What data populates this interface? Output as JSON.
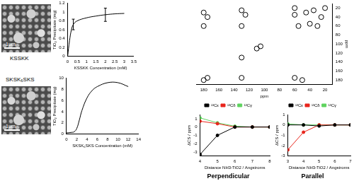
{
  "images": [
    {
      "label": "KSSKK",
      "scale_bar": "1μm"
    },
    {
      "label": "SKSK₆SKS",
      "scale_bar": "1μm"
    }
  ],
  "chart_data": [
    {
      "type": "line",
      "x_label": "KSSKK Concentration (mM)",
      "y_label": "TiO₂ Precipitate (mg)",
      "x": [
        0,
        0.1,
        0.2,
        0.3,
        0.5,
        1,
        1.5,
        2,
        2.5,
        3
      ],
      "values": [
        0,
        0.35,
        0.6,
        0.72,
        0.8,
        0.87,
        0.91,
        0.94,
        0.96,
        0.97
      ],
      "errors": [
        null,
        null,
        null,
        0.12,
        null,
        null,
        null,
        0.15,
        null,
        null
      ],
      "color": "#000000",
      "marker": "none",
      "line_style": "solid",
      "xlim": [
        0,
        3.5
      ],
      "xticks": [
        0,
        0.5,
        1,
        1.5,
        2,
        2.5,
        3,
        3.5
      ],
      "ylim": [
        0,
        1.2
      ],
      "yticks": [
        0,
        0.2,
        0.4,
        0.6,
        0.8,
        1,
        1.2
      ],
      "grid": false
    },
    {
      "type": "line",
      "x_label": "SKSK₆SKS Concentration (mM)",
      "y_label": "TiO₂ Precipitate (mg)",
      "x": [
        0,
        1,
        1.5,
        2,
        2.5,
        3,
        4,
        5,
        6,
        8,
        10,
        12
      ],
      "values": [
        0.2,
        0.3,
        0.4,
        1,
        2.5,
        4.2,
        6.5,
        7.8,
        8.5,
        9.2,
        9.2,
        8.5
      ],
      "color": "#000000",
      "marker": "none",
      "line_style": "solid",
      "xlim": [
        0,
        14
      ],
      "xticks": [
        0,
        2,
        4,
        6,
        8,
        10,
        12,
        14
      ],
      "ylim": [
        0,
        10
      ],
      "yticks": [
        0,
        2,
        4,
        6,
        8,
        10
      ],
      "grid": false
    },
    {
      "type": "scatter",
      "x_label": "ppm",
      "y_label": "ppm",
      "x": [
        180,
        175,
        130,
        125,
        60,
        45,
        35,
        25,
        20,
        55,
        40,
        30,
        180,
        130,
        60,
        110,
        105,
        130,
        180,
        175,
        130,
        60,
        50
      ],
      "values": [
        30,
        40,
        25,
        35,
        20,
        30,
        25,
        40,
        20,
        60,
        55,
        60,
        60,
        60,
        35,
        110,
        105,
        130,
        180,
        175,
        175,
        175,
        180
      ],
      "color": "#000000",
      "marker": "circle",
      "xlim": [
        190,
        10
      ],
      "xticks": [
        180,
        160,
        140,
        120,
        100,
        80,
        60,
        40,
        20
      ],
      "ylim": [
        190,
        10
      ],
      "yticks": [
        20,
        40,
        60,
        80,
        100,
        120,
        140,
        160,
        180
      ],
      "grid": false
    },
    {
      "type": "line",
      "title": "Perpendicular",
      "x_label": "Distance NH3-TiO2 / Angstroms",
      "y_label": "ΔCS / ppm",
      "x": [
        4,
        5,
        6,
        7,
        8
      ],
      "series": [
        {
          "name": "¹³Cε",
          "color": "#000000",
          "values": [
            -3.3,
            -1.0,
            0,
            0,
            0
          ]
        },
        {
          "name": "¹³Cδ",
          "color": "#e8251c",
          "values": [
            0.7,
            0.4,
            0,
            0,
            0
          ]
        },
        {
          "name": "¹³Cγ",
          "color": "#5fd35f",
          "values": [
            1.1,
            0.5,
            0.1,
            0,
            0
          ]
        }
      ],
      "marker": "circle",
      "line_style": "solid",
      "legend": "top",
      "xlim": [
        4,
        8
      ],
      "xticks": [
        4,
        5,
        6,
        7,
        8
      ],
      "ylim": [
        -3.5,
        1.5
      ],
      "yticks": [
        -3,
        -2,
        -1,
        0,
        1
      ],
      "grid": false
    },
    {
      "type": "line",
      "title": "Parallel",
      "x_label": "Distance NH3-TiO2 / Angstroms",
      "y_label": "ΔCS / ppm",
      "x": [
        3,
        4,
        5,
        6,
        7
      ],
      "series": [
        {
          "name": "¹³Cε",
          "color": "#000000",
          "values": [
            0,
            0,
            -0.1,
            0,
            0
          ]
        },
        {
          "name": "¹³Cδ",
          "color": "#e8251c",
          "values": [
            -2.4,
            -0.7,
            0,
            0,
            0
          ]
        },
        {
          "name": "¹³Cγ",
          "color": "#5fd35f",
          "values": [
            0.1,
            0,
            0,
            0,
            0
          ]
        }
      ],
      "marker": "circle",
      "line_style": "solid",
      "legend": "top",
      "xlim": [
        3,
        7
      ],
      "xticks": [
        3,
        4,
        5,
        6,
        7
      ],
      "ylim": [
        -3,
        1
      ],
      "yticks": [
        -3,
        -2,
        -1,
        0,
        1
      ],
      "grid": false
    }
  ]
}
